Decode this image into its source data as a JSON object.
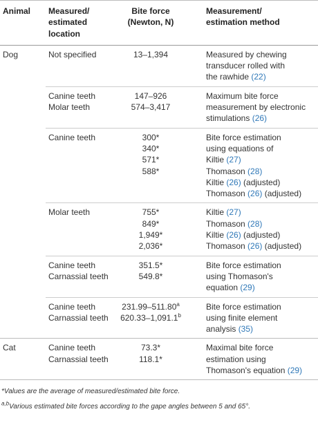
{
  "header": [
    [
      "Animal"
    ],
    [
      "Measured/",
      "estimated",
      "location"
    ],
    [
      "Bite force",
      "(Newton, N)"
    ],
    [
      "Measurement/",
      "estimation method"
    ]
  ],
  "sections": [
    {
      "animal": "Dog",
      "groups": [
        {
          "location": [
            "Not specified"
          ],
          "force": [
            "13–1,394"
          ],
          "method": [
            "Measured by chewing",
            "transducer rolled with",
            "the rawhide (22)"
          ]
        },
        {
          "location": [
            "Canine teeth",
            "Molar teeth"
          ],
          "force": [
            "147–926",
            "574–3,417"
          ],
          "method": [
            "Maximum bite force",
            "measurement by electronic",
            "stimulations (26)"
          ]
        },
        {
          "location": [
            "Canine teeth"
          ],
          "force": [
            "300*",
            "340*",
            "571*",
            "588*"
          ],
          "method": [
            "Bite force estimation",
            "using equations of",
            "Kiltie (27)",
            "Thomason (28)",
            "Kiltie (26) (adjusted)",
            "Thomason (26) (adjusted)"
          ]
        },
        {
          "location": [
            "Molar teeth"
          ],
          "force": [
            "755*",
            "849*",
            "1,949*",
            "2,036*"
          ],
          "method": [
            "Kiltie (27)",
            "Thomason (28)",
            "Kiltie (26) (adjusted)",
            "Thomason (26) (adjusted)"
          ]
        },
        {
          "location": [
            "Canine teeth",
            "Carnassial teeth"
          ],
          "force": [
            "351.5*",
            "549.8*"
          ],
          "method": [
            "Bite force estimation",
            "using Thomason's",
            "equation (29)"
          ]
        },
        {
          "location": [
            "Canine teeth",
            "Carnassial teeth"
          ],
          "force": [
            {
              "text": "231.99–511.80",
              "sup": "a"
            },
            {
              "text": "620.33–1,091.1",
              "sup": "b"
            }
          ],
          "method": [
            "Bite force estimation",
            "using finite element",
            "analysis (35)"
          ]
        }
      ]
    },
    {
      "animal": "Cat",
      "groups": [
        {
          "location": [
            "Canine teeth",
            "Carnassial teeth"
          ],
          "force": [
            "73.3*",
            "118.1*"
          ],
          "method": [
            "Maximal bite force",
            "estimation using",
            "Thomason's equation (29)"
          ]
        }
      ]
    }
  ],
  "footnotes": [
    "*Values are the average of measured/estimated bite force.",
    {
      "sup": "a,b",
      "text": "Various estimated bite forces according to the gape angles between 5 and 65°."
    }
  ]
}
